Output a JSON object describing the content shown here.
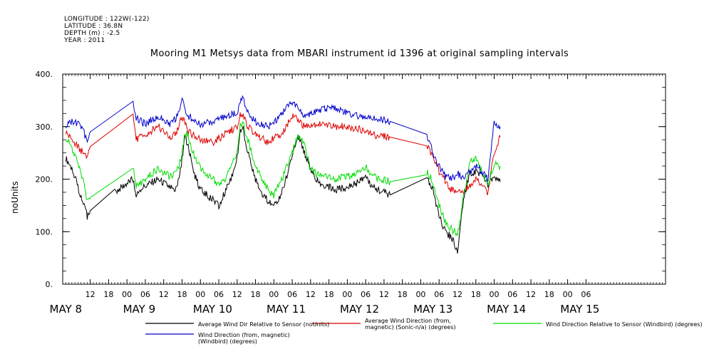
{
  "meta": {
    "longitude": "LONGITUDE : 122W(-122)",
    "latitude": "LATITUDE : 36.8N",
    "depth": "DEPTH (m) : -2.5",
    "year": "YEAR : 2011"
  },
  "chart_data": {
    "type": "line",
    "title": "Mooring M1 Metsys data from MBARI instrument id 1396 at original sampling intervals",
    "ylabel": "noUnits",
    "xlabel": "",
    "ylim": [
      0,
      400
    ],
    "yticks": [
      0,
      100,
      200,
      300,
      400
    ],
    "ytick_labels": [
      "0.",
      "100.",
      "200.",
      "300.",
      "400."
    ],
    "xlim_hours": [
      183,
      380
    ],
    "hour_ticks": [
      "12",
      "18",
      "00",
      "06",
      "12",
      "18",
      "00",
      "06",
      "12",
      "18",
      "00",
      "06",
      "12",
      "18",
      "00",
      "06",
      "12",
      "18",
      "00",
      "06",
      "12",
      "18",
      "00",
      "06",
      "12",
      "18",
      "00",
      "06"
    ],
    "day_labels": [
      "MAY  8",
      "MAY  9",
      "MAY 10",
      "MAY 11",
      "MAY 12",
      "MAY 13",
      "MAY 14",
      "MAY 15"
    ],
    "grid": false,
    "series": [
      {
        "name": "Average Wind Dir Relative to Sensor (noUnits)",
        "color": "#000000",
        "points": [
          [
            184,
            240
          ],
          [
            186,
            220
          ],
          [
            188,
            185
          ],
          [
            190,
            150
          ],
          [
            191,
            130
          ],
          [
            192,
            140
          ],
          [
            200,
            175
          ],
          [
            206,
            200
          ],
          [
            207,
            165
          ],
          [
            208,
            180
          ],
          [
            214,
            200
          ],
          [
            218,
            185
          ],
          [
            220,
            180
          ],
          [
            221,
            200
          ],
          [
            222,
            240
          ],
          [
            223,
            285
          ],
          [
            224,
            260
          ],
          [
            226,
            210
          ],
          [
            228,
            180
          ],
          [
            232,
            160
          ],
          [
            234,
            150
          ],
          [
            236,
            175
          ],
          [
            238,
            200
          ],
          [
            240,
            240
          ],
          [
            241,
            290
          ],
          [
            242,
            300
          ],
          [
            243,
            260
          ],
          [
            246,
            200
          ],
          [
            248,
            175
          ],
          [
            250,
            160
          ],
          [
            252,
            150
          ],
          [
            254,
            165
          ],
          [
            256,
            200
          ],
          [
            258,
            250
          ],
          [
            260,
            280
          ],
          [
            262,
            250
          ],
          [
            264,
            220
          ],
          [
            266,
            200
          ],
          [
            268,
            190
          ],
          [
            272,
            180
          ],
          [
            276,
            185
          ],
          [
            280,
            195
          ],
          [
            282,
            205
          ],
          [
            284,
            185
          ],
          [
            290,
            170
          ],
          [
            302,
            200
          ],
          [
            304,
            180
          ],
          [
            306,
            130
          ],
          [
            308,
            100
          ],
          [
            310,
            90
          ],
          [
            312,
            65
          ],
          [
            313,
            110
          ],
          [
            314,
            160
          ],
          [
            316,
            210
          ],
          [
            318,
            215
          ],
          [
            320,
            205
          ],
          [
            322,
            190
          ],
          [
            324,
            200
          ],
          [
            326,
            195
          ]
        ]
      },
      {
        "name": "Average Wind Direction (from, magnetic) (Sonic-n/a) (degrees)",
        "color": "#dd0000",
        "points": [
          [
            184,
            290
          ],
          [
            186,
            275
          ],
          [
            188,
            260
          ],
          [
            190,
            248
          ],
          [
            191,
            240
          ],
          [
            192,
            262
          ],
          [
            206,
            320
          ],
          [
            207,
            275
          ],
          [
            210,
            285
          ],
          [
            214,
            300
          ],
          [
            218,
            280
          ],
          [
            220,
            285
          ],
          [
            221,
            300
          ],
          [
            222,
            320
          ],
          [
            223,
            305
          ],
          [
            224,
            290
          ],
          [
            228,
            275
          ],
          [
            232,
            270
          ],
          [
            236,
            285
          ],
          [
            240,
            300
          ],
          [
            241,
            320
          ],
          [
            242,
            325
          ],
          [
            243,
            305
          ],
          [
            246,
            285
          ],
          [
            250,
            270
          ],
          [
            254,
            285
          ],
          [
            256,
            300
          ],
          [
            258,
            320
          ],
          [
            260,
            312
          ],
          [
            262,
            300
          ],
          [
            264,
            305
          ],
          [
            268,
            305
          ],
          [
            272,
            300
          ],
          [
            276,
            300
          ],
          [
            280,
            295
          ],
          [
            284,
            285
          ],
          [
            290,
            280
          ],
          [
            302,
            265
          ],
          [
            304,
            240
          ],
          [
            306,
            215
          ],
          [
            308,
            195
          ],
          [
            310,
            180
          ],
          [
            312,
            175
          ],
          [
            314,
            175
          ],
          [
            316,
            185
          ],
          [
            318,
            200
          ],
          [
            320,
            185
          ],
          [
            322,
            175
          ],
          [
            324,
            250
          ],
          [
            326,
            280
          ]
        ]
      },
      {
        "name": "Wind Direction Relative to Sensor (Windbird) (degrees)",
        "color": "#00dd00",
        "points": [
          [
            184,
            280
          ],
          [
            186,
            260
          ],
          [
            188,
            230
          ],
          [
            190,
            190
          ],
          [
            191,
            160
          ],
          [
            192,
            165
          ],
          [
            206,
            225
          ],
          [
            207,
            185
          ],
          [
            210,
            200
          ],
          [
            214,
            220
          ],
          [
            218,
            205
          ],
          [
            220,
            210
          ],
          [
            221,
            225
          ],
          [
            222,
            250
          ],
          [
            223,
            290
          ],
          [
            224,
            280
          ],
          [
            226,
            245
          ],
          [
            228,
            220
          ],
          [
            232,
            200
          ],
          [
            234,
            190
          ],
          [
            236,
            200
          ],
          [
            238,
            220
          ],
          [
            240,
            255
          ],
          [
            241,
            300
          ],
          [
            242,
            305
          ],
          [
            243,
            285
          ],
          [
            246,
            225
          ],
          [
            248,
            200
          ],
          [
            250,
            180
          ],
          [
            252,
            170
          ],
          [
            254,
            190
          ],
          [
            256,
            220
          ],
          [
            258,
            250
          ],
          [
            260,
            285
          ],
          [
            262,
            265
          ],
          [
            264,
            220
          ],
          [
            266,
            210
          ],
          [
            268,
            210
          ],
          [
            272,
            200
          ],
          [
            276,
            205
          ],
          [
            280,
            215
          ],
          [
            282,
            225
          ],
          [
            284,
            205
          ],
          [
            290,
            195
          ],
          [
            302,
            215
          ],
          [
            304,
            195
          ],
          [
            306,
            150
          ],
          [
            308,
            120
          ],
          [
            310,
            105
          ],
          [
            312,
            95
          ],
          [
            313,
            120
          ],
          [
            314,
            170
          ],
          [
            316,
            230
          ],
          [
            318,
            240
          ],
          [
            320,
            215
          ],
          [
            322,
            190
          ],
          [
            324,
            230
          ],
          [
            326,
            225
          ]
        ]
      },
      {
        "name": "Wind Direction (from, magnetic) (Windbird) (degrees)",
        "color": "#0000cc",
        "points": [
          [
            184,
            300
          ],
          [
            186,
            310
          ],
          [
            188,
            305
          ],
          [
            190,
            290
          ],
          [
            191,
            265
          ],
          [
            192,
            290
          ],
          [
            206,
            345
          ],
          [
            207,
            315
          ],
          [
            210,
            305
          ],
          [
            214,
            320
          ],
          [
            218,
            305
          ],
          [
            220,
            315
          ],
          [
            221,
            330
          ],
          [
            222,
            355
          ],
          [
            223,
            330
          ],
          [
            224,
            320
          ],
          [
            228,
            305
          ],
          [
            232,
            310
          ],
          [
            236,
            320
          ],
          [
            240,
            325
          ],
          [
            241,
            350
          ],
          [
            242,
            355
          ],
          [
            243,
            330
          ],
          [
            246,
            310
          ],
          [
            250,
            300
          ],
          [
            254,
            320
          ],
          [
            256,
            335
          ],
          [
            258,
            345
          ],
          [
            260,
            340
          ],
          [
            262,
            320
          ],
          [
            264,
            325
          ],
          [
            268,
            335
          ],
          [
            272,
            335
          ],
          [
            276,
            325
          ],
          [
            280,
            320
          ],
          [
            284,
            315
          ],
          [
            290,
            310
          ],
          [
            302,
            285
          ],
          [
            304,
            250
          ],
          [
            306,
            225
          ],
          [
            308,
            205
          ],
          [
            310,
            200
          ],
          [
            312,
            210
          ],
          [
            314,
            205
          ],
          [
            316,
            215
          ],
          [
            318,
            225
          ],
          [
            320,
            215
          ],
          [
            322,
            200
          ],
          [
            324,
            310
          ],
          [
            326,
            300
          ]
        ]
      }
    ]
  }
}
